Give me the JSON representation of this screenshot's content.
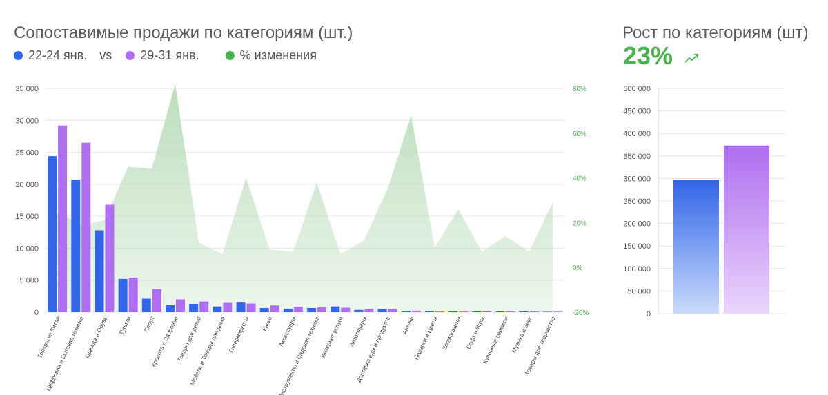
{
  "header": {
    "title": "Сопоставимые продажи по категориям (шт.)",
    "legend": {
      "series_a": "22-24 янв.",
      "vs": "vs",
      "series_b": "29-31 янв.",
      "change": "% изменения"
    }
  },
  "kpi": {
    "title": "Рост по категориям (шт)",
    "value": "23%",
    "icon": "trending-up-icon"
  },
  "colors": {
    "series_a": "#3265e8",
    "series_b": "#b06ef0",
    "change": "#4caf50",
    "area_fill": "#b9dcb9",
    "axis_right": "#4caf50"
  },
  "chart_data": [
    {
      "type": "bar",
      "categories": [
        "Товары из Китая",
        "Цифровая и Бытовая техника",
        "Одежда и Обувь",
        "Туризм",
        "Спорт",
        "Красота и Здоровье",
        "Товары для детей",
        "Мебель и Товары для дома",
        "Гипермаркеты",
        "Книги",
        "Аксессуары",
        "Инструменты и Садовая техника",
        "Интернет услуги",
        "Автотовары",
        "Доставка еды и продуктов",
        "Аптеки",
        "Подарки и Цветы",
        "Зоомагазины",
        "Софт и Игры",
        "Купонные сервисы",
        "Музыка и Звук",
        "Товары для творчества"
      ],
      "series": [
        {
          "name": "22-24 янв.",
          "values": [
            24400,
            20700,
            12800,
            5200,
            2100,
            1100,
            1300,
            900,
            1500,
            650,
            550,
            650,
            900,
            350,
            500,
            220,
            180,
            160,
            150,
            130,
            110,
            60
          ]
        },
        {
          "name": "29-31 янв.",
          "values": [
            29200,
            26500,
            16800,
            5400,
            3600,
            2000,
            1650,
            1450,
            1350,
            1050,
            850,
            750,
            700,
            480,
            500,
            240,
            190,
            190,
            180,
            150,
            120,
            80
          ]
        },
        {
          "name": "% изменения",
          "type": "area",
          "axis": "right",
          "values": [
            25,
            19,
            21,
            45,
            44,
            82,
            11,
            6,
            40,
            8,
            7,
            38,
            6,
            12,
            35,
            68,
            9,
            26,
            7,
            14,
            7,
            29
          ]
        }
      ],
      "y_left": {
        "ticks": [
          "35 000",
          "30 000",
          "25 000",
          "20 000",
          "15 000",
          "10 000",
          "5 000",
          "0"
        ],
        "range": [
          0,
          35000
        ]
      },
      "y_right": {
        "ticks": [
          "80%",
          "60%",
          "40%",
          "20%",
          "0%",
          "-20%"
        ],
        "range": [
          -20,
          80
        ]
      },
      "grid": true
    },
    {
      "type": "bar",
      "categories": [
        "22-24 янв.",
        "29-31 янв."
      ],
      "values": [
        297000,
        373000
      ],
      "y_ticks": [
        "500 000",
        "450 000",
        "400 000",
        "350 000",
        "300 000",
        "250 000",
        "200 000",
        "150 000",
        "100 000",
        "50 000",
        "0"
      ],
      "range": [
        0,
        500000
      ],
      "grid": true
    }
  ]
}
